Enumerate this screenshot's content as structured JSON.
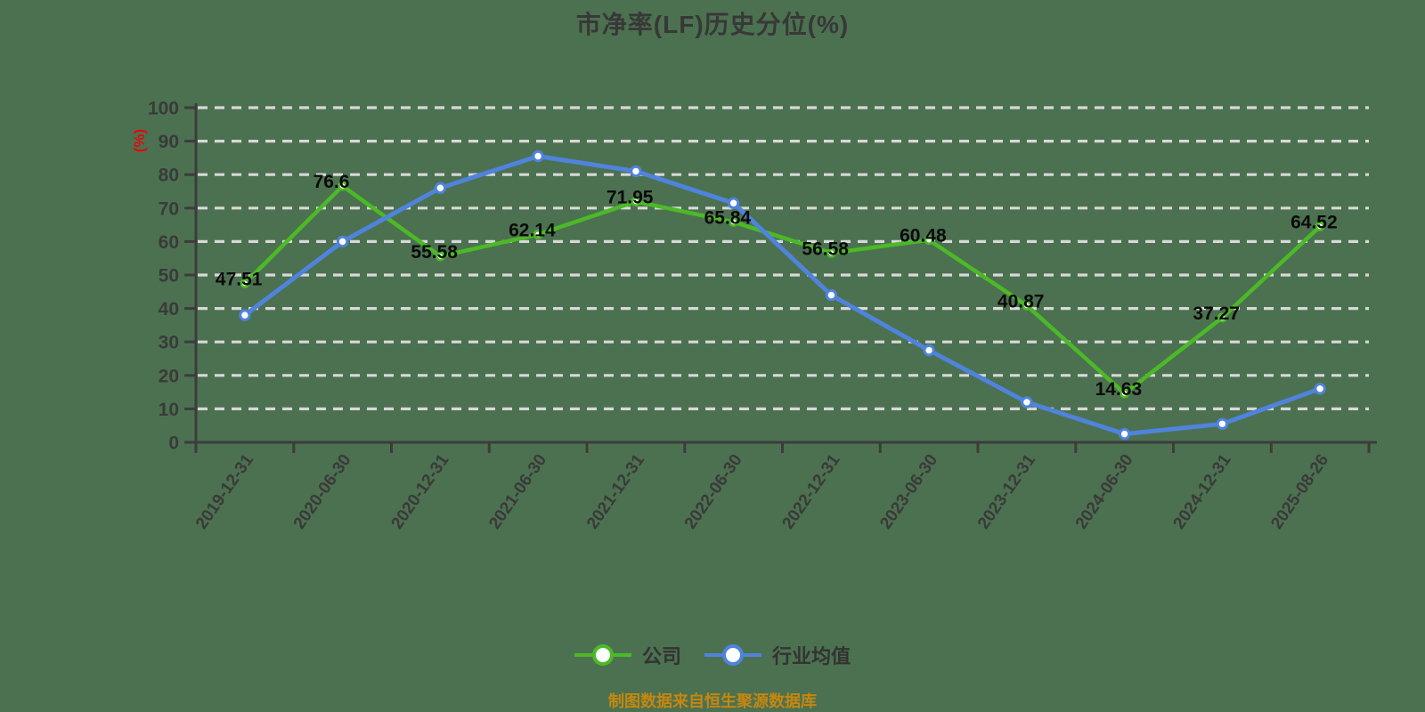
{
  "title": "市净率(LF)历史分位(%)",
  "y_axis_unit_label": "(%)",
  "footer_note": "制图数据来自恒生聚源数据库",
  "colors": {
    "background": "#4c7150",
    "grid": "#d8d8d8",
    "axis": "#3c3c3c",
    "tick_label": "#3a3a3a",
    "data_label": "#0a0a0a",
    "title": "#383838",
    "unit_label": "#dc0c0c",
    "footer": "#c5870f",
    "legend_text": "#333333",
    "company": "#4cb927",
    "industry": "#4f83dc"
  },
  "chart_data": {
    "type": "line",
    "title": "市净率(LF)历史分位(%)",
    "categories": [
      "2019-12-31",
      "2020-06-30",
      "2020-12-31",
      "2021-06-30",
      "2021-12-31",
      "2022-06-30",
      "2022-12-31",
      "2023-06-30",
      "2023-12-31",
      "2024-06-30",
      "2024-12-31",
      "2025-08-26"
    ],
    "series": [
      {
        "name": "公司",
        "color": "#4cb927",
        "data_labels": true,
        "values": [
          47.51,
          76.6,
          55.58,
          62.14,
          71.95,
          65.84,
          56.58,
          60.48,
          40.87,
          14.63,
          37.27,
          64.52
        ]
      },
      {
        "name": "行业均值",
        "color": "#4f83dc",
        "data_labels": false,
        "values": [
          38,
          60,
          76,
          85.5,
          81,
          71.5,
          44,
          27.5,
          12,
          2.5,
          5.5,
          16
        ]
      }
    ],
    "ylabel": "(%)",
    "ylim": [
      0,
      100
    ],
    "y_ticks": [
      0,
      10,
      20,
      30,
      40,
      50,
      60,
      70,
      80,
      90,
      100
    ],
    "grid": "horizontal-dashed",
    "legend_position": "bottom"
  }
}
